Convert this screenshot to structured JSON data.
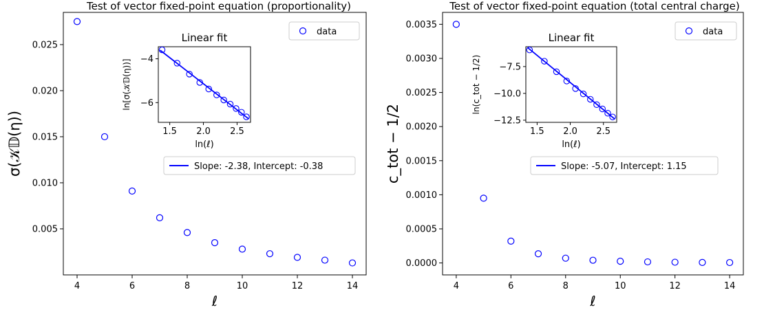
{
  "chart_data": [
    {
      "type": "scatter",
      "title": "Test of vector fixed-point equation (proportionality)",
      "xlabel": "ℓ",
      "ylabel": "σ(𝒦𝔻(η))",
      "xlim": [
        3.5,
        14.5
      ],
      "ylim": [
        0.0,
        0.0285
      ],
      "xticks": [
        4,
        6,
        8,
        10,
        12,
        14
      ],
      "yticks": [
        0.005,
        0.01,
        0.015,
        0.02,
        0.025
      ],
      "ytick_labels": [
        "0.005",
        "0.010",
        "0.015",
        "0.020",
        "0.025"
      ],
      "legend": {
        "label": "data",
        "position": "top-right"
      },
      "marker": {
        "shape": "open-circle",
        "color": "#0000ff"
      },
      "series": [
        {
          "name": "data",
          "x": [
            4,
            5,
            6,
            7,
            8,
            9,
            10,
            11,
            12,
            13,
            14
          ],
          "y": [
            0.0275,
            0.015,
            0.0091,
            0.0062,
            0.0046,
            0.0035,
            0.0028,
            0.0023,
            0.0019,
            0.0016,
            0.0013
          ]
        }
      ],
      "inset": {
        "title": "Linear fit",
        "xlabel": "ln(ℓ)",
        "ylabel": "ln[σ(𝒦𝔻(η))]",
        "xlim": [
          1.33,
          2.7
        ],
        "ylim": [
          -6.9,
          -3.45
        ],
        "xticks": [
          1.5,
          2.0,
          2.5
        ],
        "xtick_labels": [
          "1.5",
          "2.0",
          "2.5"
        ],
        "yticks": [
          -4,
          -6
        ],
        "ytick_labels": [
          "−4",
          "−6"
        ],
        "points_x": [
          1.386,
          1.609,
          1.792,
          1.946,
          2.079,
          2.197,
          2.303,
          2.398,
          2.485,
          2.565,
          2.639
        ],
        "points_y": [
          -3.59,
          -4.2,
          -4.7,
          -5.08,
          -5.38,
          -5.65,
          -5.88,
          -6.07,
          -6.27,
          -6.44,
          -6.65
        ],
        "fit": {
          "slope": -2.38,
          "intercept": -0.38,
          "label": "Slope: -2.38, Intercept: -0.38",
          "color": "#0000ff"
        }
      }
    },
    {
      "type": "scatter",
      "title": "Test of vector fixed-point equation (total central charge)",
      "xlabel": "ℓ",
      "ylabel": "c_tot − 1/2",
      "xlim": [
        3.5,
        14.5
      ],
      "ylim": [
        -0.000175,
        0.003675
      ],
      "xticks": [
        4,
        6,
        8,
        10,
        12,
        14
      ],
      "yticks": [
        0.0,
        0.0005,
        0.001,
        0.0015,
        0.002,
        0.0025,
        0.003,
        0.0035
      ],
      "ytick_labels": [
        "0.0000",
        "0.0005",
        "0.0010",
        "0.0015",
        "0.0020",
        "0.0025",
        "0.0030",
        "0.0035"
      ],
      "legend": {
        "label": "data",
        "position": "top-right"
      },
      "marker": {
        "shape": "open-circle",
        "color": "#0000ff"
      },
      "series": [
        {
          "name": "data",
          "x": [
            4,
            5,
            6,
            7,
            8,
            9,
            10,
            11,
            12,
            13,
            14
          ],
          "y": [
            0.0035,
            0.00095,
            0.00032,
            0.000135,
            7e-05,
            4e-05,
            2.5e-05,
            1.6e-05,
            1.1e-05,
            8e-06,
            6e-06
          ]
        }
      ],
      "inset": {
        "title": "Linear fit",
        "xlabel": "ln(ℓ)",
        "ylabel": "ln(c_tot − 1/2)",
        "xlim": [
          1.33,
          2.7
        ],
        "ylim": [
          -12.7,
          -5.65
        ],
        "xticks": [
          1.5,
          2.0,
          2.5
        ],
        "xtick_labels": [
          "1.5",
          "2.0",
          "2.5"
        ],
        "yticks": [
          -7.5,
          -10.0,
          -12.5
        ],
        "ytick_labels": [
          "−7.5",
          "−10.0",
          "−12.5"
        ],
        "points_x": [
          1.386,
          1.609,
          1.792,
          1.946,
          2.079,
          2.197,
          2.303,
          2.398,
          2.485,
          2.565,
          2.639
        ],
        "points_y": [
          -5.95,
          -7.0,
          -7.98,
          -8.85,
          -9.55,
          -10.05,
          -10.55,
          -11.05,
          -11.45,
          -11.85,
          -12.2
        ],
        "fit": {
          "slope": -5.07,
          "intercept": 1.15,
          "label": "Slope: -5.07, Intercept: 1.15",
          "color": "#0000ff"
        }
      }
    }
  ]
}
